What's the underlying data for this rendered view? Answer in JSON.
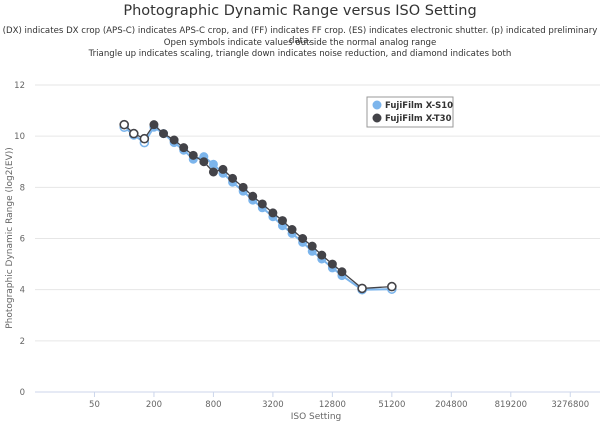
{
  "chart_data": {
    "type": "line",
    "title": "Photographic Dynamic Range versus ISO Setting",
    "subtitle": [
      "(DX) indicates DX crop (APS-C) indicates APS-C crop, and (FF) indicates FF crop. (ES) indicates electronic shutter. (p) indicated preliminary data.",
      "Open symbols indicate values outside the normal analog range",
      "Triangle up indicates scaling, triangle down indicates noise reduction, and diamond indicates both"
    ],
    "xlabel": "ISO Setting",
    "ylabel": "Photographic Dynamic Range (log2(EV))",
    "x_scale": "log2",
    "xlim": [
      12.5,
      6553600
    ],
    "ylim": [
      0,
      12
    ],
    "x_ticks": [
      50,
      200,
      800,
      3200,
      12800,
      51200,
      204800,
      819200,
      3276800
    ],
    "x_tick_labels": [
      "50",
      "200",
      "800",
      "3200",
      "12800",
      "51200",
      "204800",
      "819200",
      "3276800"
    ],
    "y_ticks": [
      0,
      2,
      4,
      6,
      8,
      10,
      12
    ],
    "y_tick_labels": [
      "0",
      "2",
      "4",
      "6",
      "8",
      "10",
      "12"
    ],
    "grid": "horizontal",
    "legend_position": "top-right",
    "series": [
      {
        "name": "FujiFilm X-S10",
        "color": "#7cb5ec",
        "points": [
          {
            "x": 100,
            "y": 10.35,
            "open": true
          },
          {
            "x": 125,
            "y": 10.05,
            "open": true
          },
          {
            "x": 160,
            "y": 9.75,
            "open": true
          },
          {
            "x": 200,
            "y": 10.35,
            "open": false
          },
          {
            "x": 250,
            "y": 10.1,
            "open": false
          },
          {
            "x": 320,
            "y": 9.75,
            "open": false
          },
          {
            "x": 400,
            "y": 9.45,
            "open": false
          },
          {
            "x": 500,
            "y": 9.1,
            "open": false
          },
          {
            "x": 640,
            "y": 9.2,
            "open": false
          },
          {
            "x": 800,
            "y": 8.9,
            "open": false
          },
          {
            "x": 1000,
            "y": 8.55,
            "open": false
          },
          {
            "x": 1250,
            "y": 8.2,
            "open": false
          },
          {
            "x": 1600,
            "y": 7.85,
            "open": false
          },
          {
            "x": 2000,
            "y": 7.5,
            "open": false
          },
          {
            "x": 2500,
            "y": 7.2,
            "open": false
          },
          {
            "x": 3200,
            "y": 6.85,
            "open": false
          },
          {
            "x": 4000,
            "y": 6.5,
            "open": false
          },
          {
            "x": 5000,
            "y": 6.2,
            "open": false
          },
          {
            "x": 6400,
            "y": 5.85,
            "open": false
          },
          {
            "x": 8000,
            "y": 5.5,
            "open": false
          },
          {
            "x": 10000,
            "y": 5.2,
            "open": false
          },
          {
            "x": 12800,
            "y": 4.85,
            "open": false
          },
          {
            "x": 16000,
            "y": 4.55,
            "open": false
          },
          {
            "x": 25600,
            "y": 4.0,
            "open": true
          },
          {
            "x": 51200,
            "y": 4.02,
            "open": true
          }
        ]
      },
      {
        "name": "FujiFilm X-T30",
        "color": "#434348",
        "points": [
          {
            "x": 100,
            "y": 10.45,
            "open": true
          },
          {
            "x": 125,
            "y": 10.1,
            "open": true
          },
          {
            "x": 160,
            "y": 9.9,
            "open": true
          },
          {
            "x": 200,
            "y": 10.45,
            "open": false
          },
          {
            "x": 250,
            "y": 10.1,
            "open": false
          },
          {
            "x": 320,
            "y": 9.85,
            "open": false
          },
          {
            "x": 400,
            "y": 9.55,
            "open": false
          },
          {
            "x": 500,
            "y": 9.25,
            "open": false
          },
          {
            "x": 640,
            "y": 9.0,
            "open": false
          },
          {
            "x": 800,
            "y": 8.6,
            "open": false
          },
          {
            "x": 1000,
            "y": 8.7,
            "open": false
          },
          {
            "x": 1250,
            "y": 8.35,
            "open": false
          },
          {
            "x": 1600,
            "y": 8.0,
            "open": false
          },
          {
            "x": 2000,
            "y": 7.65,
            "open": false
          },
          {
            "x": 2500,
            "y": 7.35,
            "open": false
          },
          {
            "x": 3200,
            "y": 7.0,
            "open": false
          },
          {
            "x": 4000,
            "y": 6.7,
            "open": false
          },
          {
            "x": 5000,
            "y": 6.35,
            "open": false
          },
          {
            "x": 6400,
            "y": 6.0,
            "open": false
          },
          {
            "x": 8000,
            "y": 5.7,
            "open": false
          },
          {
            "x": 10000,
            "y": 5.35,
            "open": false
          },
          {
            "x": 12800,
            "y": 5.0,
            "open": false
          },
          {
            "x": 16000,
            "y": 4.7,
            "open": false
          },
          {
            "x": 25600,
            "y": 4.05,
            "open": true
          },
          {
            "x": 51200,
            "y": 4.12,
            "open": true
          }
        ]
      }
    ]
  }
}
